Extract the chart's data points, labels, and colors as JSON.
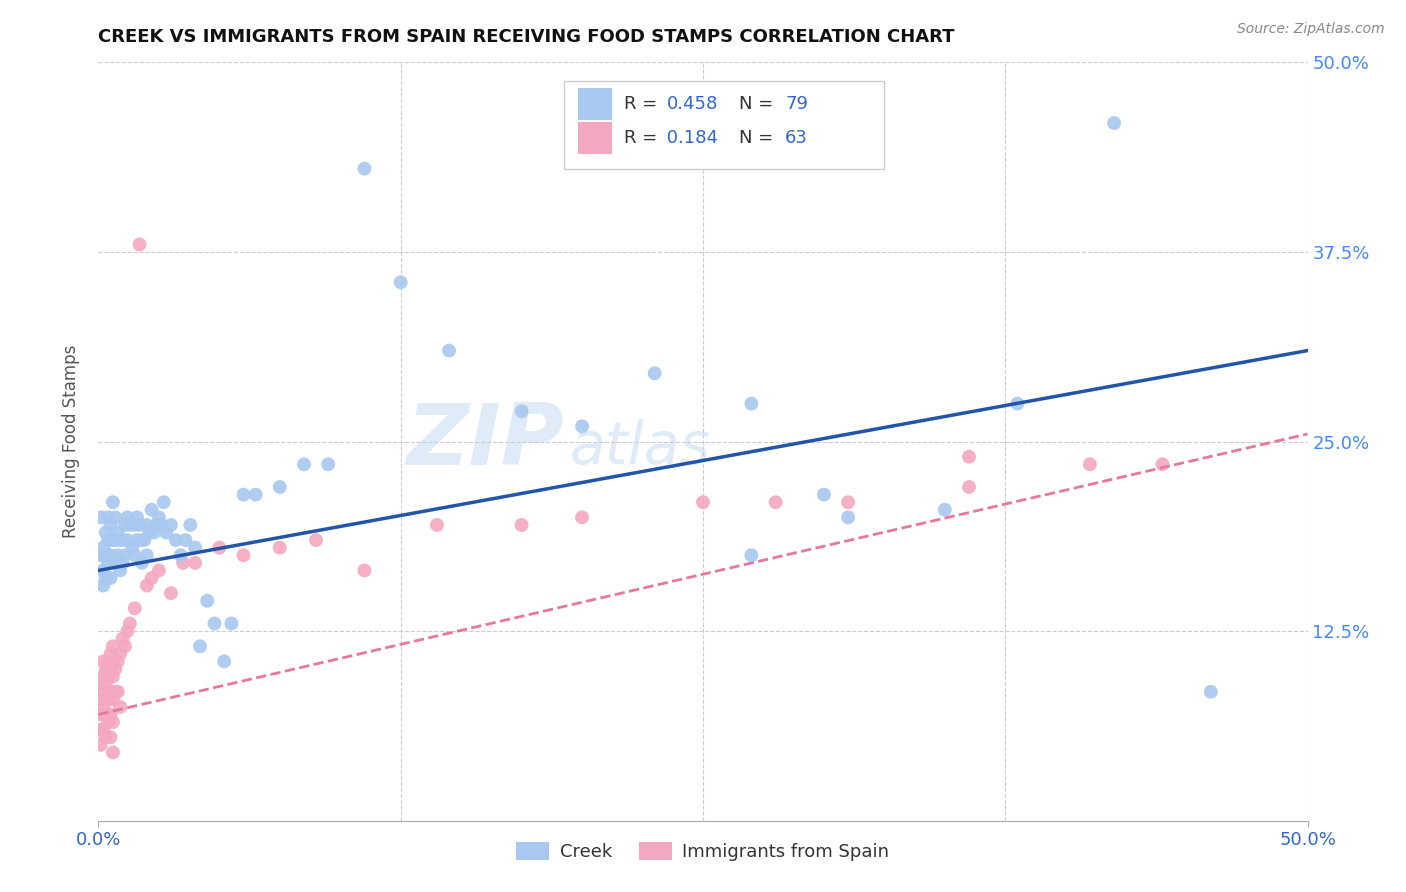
{
  "title": "CREEK VS IMMIGRANTS FROM SPAIN RECEIVING FOOD STAMPS CORRELATION CHART",
  "source": "Source: ZipAtlas.com",
  "ylabel": "Receiving Food Stamps",
  "xlim": [
    0.0,
    0.5
  ],
  "ylim": [
    0.0,
    0.5
  ],
  "creek_color": "#a8c8f0",
  "spain_color": "#f4a8c0",
  "creek_line_color": "#2255aa",
  "spain_line_color": "#e8789a",
  "creek_R": 0.458,
  "creek_N": 79,
  "spain_R": 0.184,
  "spain_N": 63,
  "watermark": "ZIPatlas",
  "background_color": "#ffffff",
  "grid_color": "#cccccc",
  "tick_label_color_right": "#4488ff",
  "legend_r_color": "#3366cc",
  "legend_n_color": "#3366cc",
  "creek_line": {
    "x0": 0.0,
    "y0": 0.165,
    "x1": 0.5,
    "y1": 0.31
  },
  "spain_line": {
    "x0": 0.0,
    "y0": 0.07,
    "x1": 0.5,
    "y1": 0.255
  },
  "creek_scatter": {
    "x": [
      0.001,
      0.001,
      0.002,
      0.002,
      0.002,
      0.003,
      0.003,
      0.003,
      0.004,
      0.004,
      0.004,
      0.005,
      0.005,
      0.005,
      0.006,
      0.006,
      0.007,
      0.007,
      0.007,
      0.008,
      0.008,
      0.009,
      0.009,
      0.01,
      0.01,
      0.011,
      0.011,
      0.012,
      0.012,
      0.013,
      0.014,
      0.015,
      0.015,
      0.016,
      0.016,
      0.017,
      0.018,
      0.018,
      0.019,
      0.02,
      0.02,
      0.021,
      0.022,
      0.023,
      0.024,
      0.025,
      0.026,
      0.027,
      0.028,
      0.03,
      0.032,
      0.034,
      0.036,
      0.038,
      0.04,
      0.042,
      0.045,
      0.048,
      0.052,
      0.055,
      0.06,
      0.065,
      0.075,
      0.085,
      0.095,
      0.11,
      0.125,
      0.145,
      0.175,
      0.2,
      0.23,
      0.27,
      0.31,
      0.38,
      0.3,
      0.35,
      0.27,
      0.42,
      0.46
    ],
    "y": [
      0.2,
      0.175,
      0.18,
      0.165,
      0.155,
      0.19,
      0.175,
      0.16,
      0.2,
      0.185,
      0.17,
      0.195,
      0.175,
      0.16,
      0.21,
      0.185,
      0.2,
      0.185,
      0.17,
      0.19,
      0.175,
      0.185,
      0.165,
      0.185,
      0.17,
      0.195,
      0.175,
      0.2,
      0.185,
      0.195,
      0.18,
      0.195,
      0.175,
      0.2,
      0.185,
      0.195,
      0.185,
      0.17,
      0.185,
      0.195,
      0.175,
      0.19,
      0.205,
      0.19,
      0.195,
      0.2,
      0.195,
      0.21,
      0.19,
      0.195,
      0.185,
      0.175,
      0.185,
      0.195,
      0.18,
      0.115,
      0.145,
      0.13,
      0.105,
      0.13,
      0.215,
      0.215,
      0.22,
      0.235,
      0.235,
      0.43,
      0.355,
      0.31,
      0.27,
      0.26,
      0.295,
      0.275,
      0.2,
      0.275,
      0.215,
      0.205,
      0.175,
      0.46,
      0.085
    ]
  },
  "spain_scatter": {
    "x": [
      0.001,
      0.001,
      0.001,
      0.001,
      0.001,
      0.002,
      0.002,
      0.002,
      0.002,
      0.002,
      0.003,
      0.003,
      0.003,
      0.003,
      0.003,
      0.004,
      0.004,
      0.004,
      0.004,
      0.005,
      0.005,
      0.005,
      0.005,
      0.005,
      0.006,
      0.006,
      0.006,
      0.006,
      0.006,
      0.006,
      0.007,
      0.007,
      0.008,
      0.008,
      0.009,
      0.009,
      0.01,
      0.011,
      0.012,
      0.013,
      0.015,
      0.017,
      0.02,
      0.022,
      0.025,
      0.03,
      0.035,
      0.04,
      0.05,
      0.06,
      0.075,
      0.09,
      0.11,
      0.14,
      0.2,
      0.25,
      0.31,
      0.36,
      0.41,
      0.44,
      0.175,
      0.28,
      0.36
    ],
    "y": [
      0.09,
      0.08,
      0.07,
      0.06,
      0.05,
      0.105,
      0.095,
      0.085,
      0.075,
      0.06,
      0.1,
      0.09,
      0.08,
      0.07,
      0.055,
      0.105,
      0.095,
      0.08,
      0.065,
      0.11,
      0.1,
      0.085,
      0.07,
      0.055,
      0.115,
      0.105,
      0.095,
      0.08,
      0.065,
      0.045,
      0.1,
      0.085,
      0.105,
      0.085,
      0.11,
      0.075,
      0.12,
      0.115,
      0.125,
      0.13,
      0.14,
      0.38,
      0.155,
      0.16,
      0.165,
      0.15,
      0.17,
      0.17,
      0.18,
      0.175,
      0.18,
      0.185,
      0.165,
      0.195,
      0.2,
      0.21,
      0.21,
      0.22,
      0.235,
      0.235,
      0.195,
      0.21,
      0.24
    ]
  }
}
